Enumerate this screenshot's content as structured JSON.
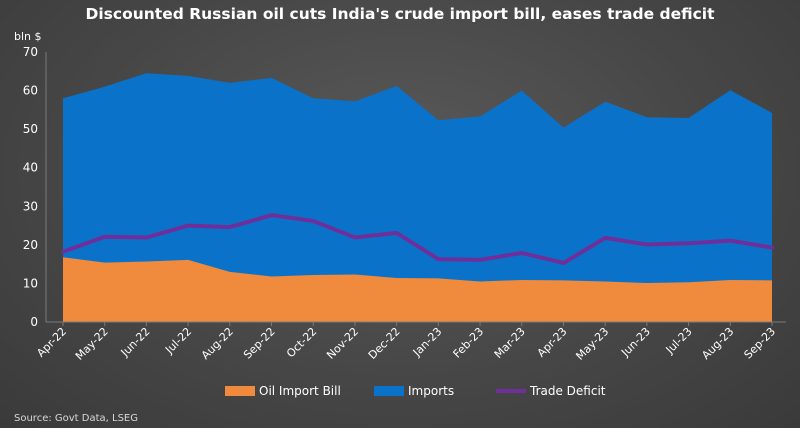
{
  "chart_data": {
    "type": "area",
    "title": "Discounted Russian oil cuts India's crude import bill, eases trade deficit",
    "ylabel": "bln $",
    "ylim": [
      0,
      70
    ],
    "yticks": [
      0,
      10,
      20,
      30,
      40,
      50,
      60,
      70
    ],
    "grid": false,
    "legend_position": "bottom",
    "categories": [
      "Apr-22",
      "May-22",
      "Jun-22",
      "Jul-22",
      "Aug-22",
      "Sep-22",
      "Oct-22",
      "Nov-22",
      "Dec-22",
      "Jan-23",
      "Feb-23",
      "Mar-23",
      "Apr-23",
      "May-23",
      "Jun-23",
      "Jul-23",
      "Aug-23",
      "Sep-23"
    ],
    "series": [
      {
        "name": "Oil Import Bill",
        "kind": "area",
        "color": "#f08a3c",
        "values": [
          16.8,
          15.4,
          15.7,
          16.1,
          13.0,
          11.8,
          12.2,
          12.3,
          11.4,
          11.3,
          10.5,
          10.9,
          10.8,
          10.5,
          10.1,
          10.3,
          10.9,
          10.8
        ]
      },
      {
        "name": "Imports",
        "kind": "area",
        "color": "#0b72c9",
        "values": [
          58.0,
          61.0,
          64.5,
          63.8,
          62.0,
          63.3,
          58.0,
          57.2,
          61.2,
          52.3,
          53.3,
          60.0,
          50.4,
          57.1,
          53.1,
          52.9,
          60.1,
          54.2
        ]
      },
      {
        "name": "Trade Deficit",
        "kind": "line",
        "color": "#6f2e9a",
        "values": [
          18.2,
          22.1,
          21.9,
          25.0,
          24.6,
          27.7,
          26.2,
          21.9,
          23.1,
          16.3,
          16.1,
          17.9,
          15.3,
          21.8,
          20.1,
          20.4,
          21.1,
          19.3
        ]
      }
    ],
    "source": "Source: Govt Data, LSEG"
  }
}
